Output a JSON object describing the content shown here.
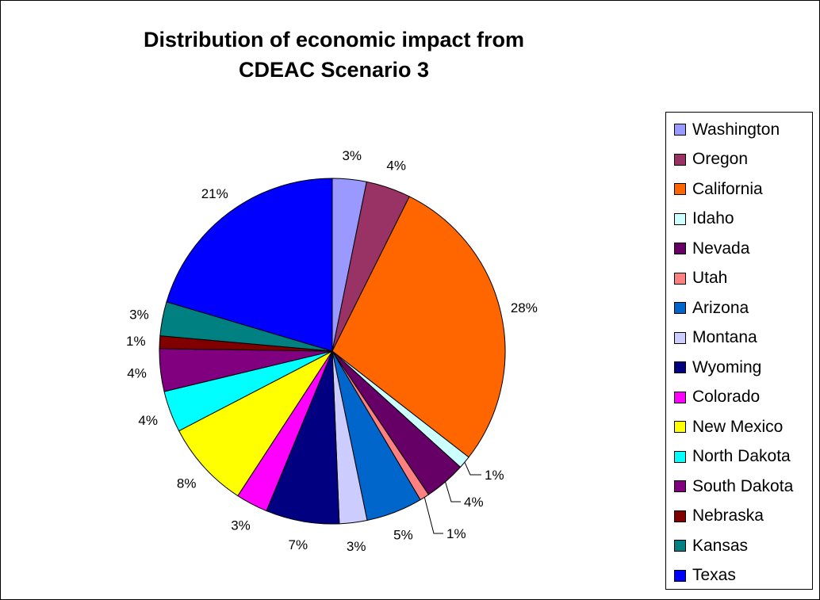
{
  "chart_data": {
    "type": "pie",
    "title_lines": [
      "Distribution of economic impact from",
      "CDEAC Scenario 3"
    ],
    "slices": [
      {
        "label": "Washington",
        "percent_label": "3%",
        "value": 3.2,
        "color": "#9999FF"
      },
      {
        "label": "Oregon",
        "percent_label": "4%",
        "value": 4.2,
        "color": "#993366"
      },
      {
        "label": "California",
        "percent_label": "28%",
        "value": 28.3,
        "color": "#FF6600"
      },
      {
        "label": "Idaho",
        "percent_label": "1%",
        "value": 1.2,
        "color": "#CCFFFF"
      },
      {
        "label": "Nevada",
        "percent_label": "4%",
        "value": 3.9,
        "color": "#660066"
      },
      {
        "label": "Utah",
        "percent_label": "1%",
        "value": 0.9,
        "color": "#FF8080"
      },
      {
        "label": "Arizona",
        "percent_label": "5%",
        "value": 5.3,
        "color": "#0066CC"
      },
      {
        "label": "Montana",
        "percent_label": "3%",
        "value": 2.6,
        "color": "#CCCCFF"
      },
      {
        "label": "Wyoming",
        "percent_label": "7%",
        "value": 6.9,
        "color": "#000080"
      },
      {
        "label": "Colorado",
        "percent_label": "3%",
        "value": 3.0,
        "color": "#FF00FF"
      },
      {
        "label": "New Mexico",
        "percent_label": "8%",
        "value": 8.2,
        "color": "#FFFF00"
      },
      {
        "label": "North Dakota",
        "percent_label": "4%",
        "value": 3.9,
        "color": "#00FFFF"
      },
      {
        "label": "South Dakota",
        "percent_label": "4%",
        "value": 4.0,
        "color": "#800080"
      },
      {
        "label": "Nebraska",
        "percent_label": "1%",
        "value": 1.2,
        "color": "#800000"
      },
      {
        "label": "Kansas",
        "percent_label": "3%",
        "value": 3.2,
        "color": "#008080"
      },
      {
        "label": "Texas",
        "percent_label": "21%",
        "value": 20.5,
        "color": "#0000FF"
      }
    ],
    "legend_position": "right"
  }
}
